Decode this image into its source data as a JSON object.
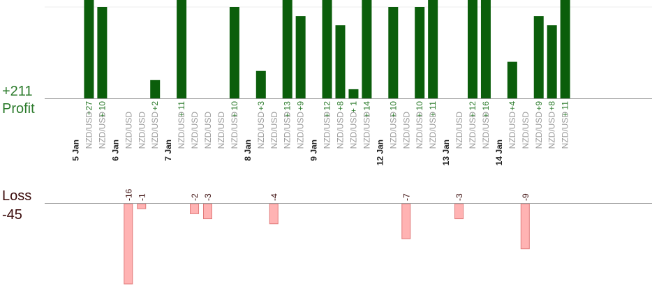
{
  "totals": {
    "profit_value": "+211",
    "profit_label": "Profit",
    "loss_label": "Loss",
    "loss_value": "-45"
  },
  "colors": {
    "profit_bar": "#0b5e0b",
    "loss_bar": "#ffb3b3",
    "loss_bar_edge": "#e07a7a",
    "profit_text": "#2a7a2a",
    "loss_text": "#3a0a0a",
    "date_text": "#222222",
    "pair_text": "#9a9a9a"
  },
  "chart_data": {
    "type": "bar",
    "title": "",
    "xlabel": "",
    "ylabel": "",
    "profit_axis_max": 10,
    "loss_axis_max": 16,
    "columns": [
      {
        "kind": "date",
        "label": "5 Jan"
      },
      {
        "kind": "trade",
        "label": "NZD/USD",
        "profit": 27,
        "profit_label": "+27"
      },
      {
        "kind": "trade",
        "label": "NZD/USD",
        "profit": 10,
        "profit_label": "+ 10"
      },
      {
        "kind": "date",
        "label": "6 Jan"
      },
      {
        "kind": "trade",
        "label": "NZD/USD",
        "loss": 16,
        "loss_label": "-16"
      },
      {
        "kind": "trade",
        "label": "NZD/USD",
        "loss": 1,
        "loss_label": "-1"
      },
      {
        "kind": "trade",
        "label": "NZD/USD",
        "profit": 2,
        "profit_label": "+2"
      },
      {
        "kind": "date",
        "label": "7 Jan"
      },
      {
        "kind": "trade",
        "label": "NZD/USD",
        "profit": 11,
        "profit_label": "+ 11"
      },
      {
        "kind": "trade",
        "label": "NZD/USD",
        "loss": 2,
        "loss_label": "-2"
      },
      {
        "kind": "trade",
        "label": "NZD/USD",
        "loss": 3,
        "loss_label": "-3"
      },
      {
        "kind": "trade",
        "label": "NZD/USD"
      },
      {
        "kind": "trade",
        "label": "NZD/USD",
        "profit": 10,
        "profit_label": "+ 10"
      },
      {
        "kind": "date",
        "label": "8 Jan"
      },
      {
        "kind": "trade",
        "label": "NZD/USD",
        "profit": 3,
        "profit_label": "+3"
      },
      {
        "kind": "trade",
        "label": "NZD/USD",
        "loss": 4,
        "loss_label": "-4"
      },
      {
        "kind": "trade",
        "label": "NZD/USD",
        "profit": 13,
        "profit_label": "+ 13"
      },
      {
        "kind": "trade",
        "label": "NZD/USD",
        "profit": 9,
        "profit_label": "+9"
      },
      {
        "kind": "date",
        "label": "9 Jan"
      },
      {
        "kind": "trade",
        "label": "NZD/USD",
        "profit": 12,
        "profit_label": "+ 12"
      },
      {
        "kind": "trade",
        "label": "NZD/USD",
        "profit": 8,
        "profit_label": "+8"
      },
      {
        "kind": "trade",
        "label": "NZD/USD",
        "profit": 1,
        "profit_label": "+ 1"
      },
      {
        "kind": "trade",
        "label": "NZD/USD",
        "profit": 14,
        "profit_label": "+ 14"
      },
      {
        "kind": "date",
        "label": "12 Jan"
      },
      {
        "kind": "trade",
        "label": "NZD/USD",
        "profit": 10,
        "profit_label": "+ 10"
      },
      {
        "kind": "trade",
        "label": "NZD/USD",
        "loss": 7,
        "loss_label": "-7"
      },
      {
        "kind": "trade",
        "label": "NZD/USD",
        "profit": 10,
        "profit_label": "+ 10"
      },
      {
        "kind": "trade",
        "label": "NZD/USD",
        "profit": 11,
        "profit_label": "+ 11"
      },
      {
        "kind": "date",
        "label": "13 Jan"
      },
      {
        "kind": "trade",
        "label": "NZD/USD",
        "loss": 3,
        "loss_label": "-3"
      },
      {
        "kind": "trade",
        "label": "NZD/USD",
        "profit": 12,
        "profit_label": "+ 12"
      },
      {
        "kind": "trade",
        "label": "NZD/USD",
        "profit": 16,
        "profit_label": "+ 16"
      },
      {
        "kind": "date",
        "label": "14 Jan"
      },
      {
        "kind": "trade",
        "label": "NZD/USD",
        "profit": 4,
        "profit_label": "+4"
      },
      {
        "kind": "trade",
        "label": "NZD/USD",
        "loss": 9,
        "loss_label": "-9"
      },
      {
        "kind": "trade",
        "label": "NZD/USD",
        "profit": 9,
        "profit_label": "+9"
      },
      {
        "kind": "trade",
        "label": "NZD/USD",
        "profit": 8,
        "profit_label": "+8"
      },
      {
        "kind": "trade",
        "label": "NZD/USD",
        "profit": 11,
        "profit_label": "+ 11"
      }
    ]
  }
}
